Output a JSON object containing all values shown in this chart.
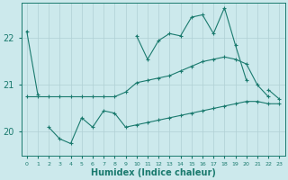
{
  "xlabel": "Humidex (Indice chaleur)",
  "background_color": "#cce9ec",
  "line_color": "#1a7a6e",
  "grid_color": "#b0d0d4",
  "x_values": [
    0,
    1,
    2,
    3,
    4,
    5,
    6,
    7,
    8,
    9,
    10,
    11,
    12,
    13,
    14,
    15,
    16,
    17,
    18,
    19,
    20,
    21,
    22,
    23
  ],
  "y_top": [
    22.15,
    20.8,
    null,
    null,
    null,
    null,
    null,
    null,
    null,
    null,
    22.05,
    21.55,
    21.95,
    22.1,
    22.05,
    22.45,
    22.5,
    22.1,
    22.65,
    21.85,
    21.1,
    null,
    20.9,
    20.7
  ],
  "y_mid": [
    20.75,
    20.75,
    20.75,
    20.75,
    20.75,
    20.75,
    20.75,
    20.75,
    20.75,
    20.85,
    21.05,
    21.1,
    21.15,
    21.2,
    21.3,
    21.4,
    21.5,
    21.55,
    21.6,
    21.55,
    21.45,
    21.0,
    20.75,
    null
  ],
  "y_bot": [
    null,
    null,
    20.1,
    19.85,
    19.75,
    20.3,
    20.1,
    20.45,
    20.4,
    20.1,
    20.15,
    20.2,
    20.25,
    20.3,
    20.35,
    20.4,
    20.45,
    20.5,
    20.55,
    20.6,
    20.65,
    20.65,
    20.6,
    20.6
  ],
  "ylim": [
    19.5,
    22.75
  ],
  "yticks": [
    20,
    21,
    22
  ],
  "xlim": [
    -0.5,
    23.5
  ],
  "markersize": 3
}
